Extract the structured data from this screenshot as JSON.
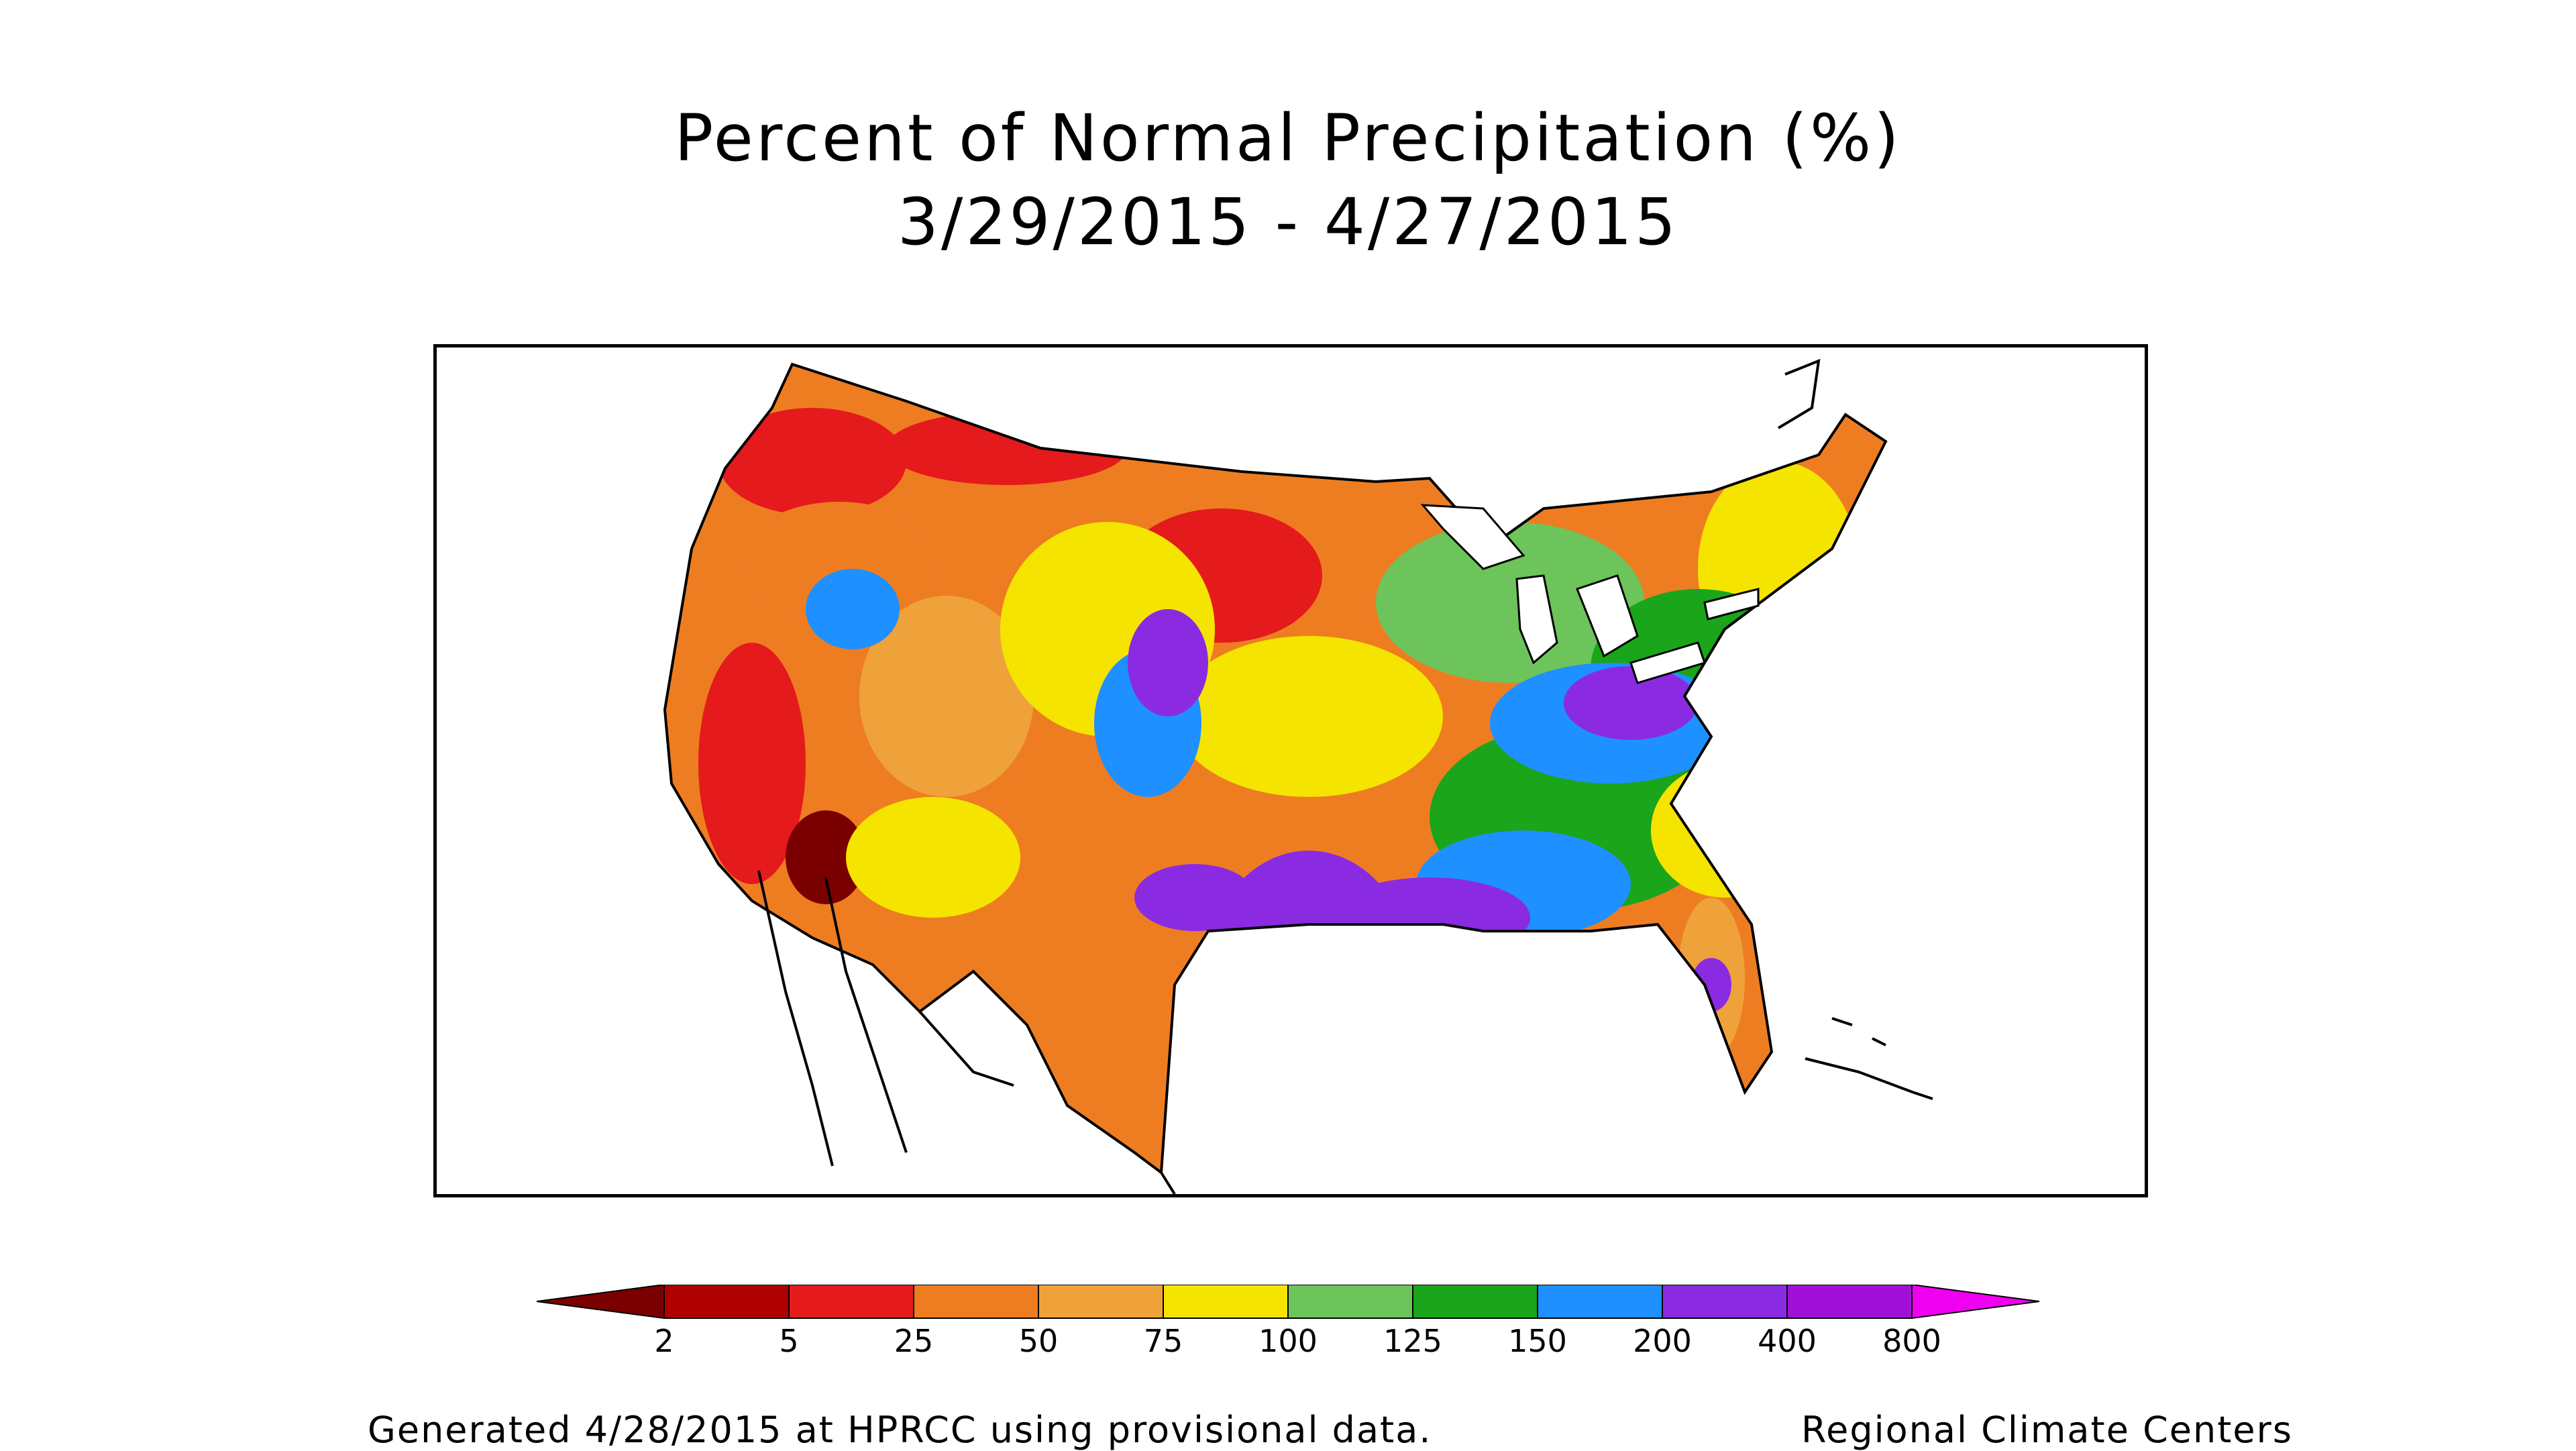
{
  "title": "Percent of Normal Precipitation (%)",
  "subtitle": "3/29/2015 - 4/27/2015",
  "legend": {
    "bins": [
      {
        "color": "#7a0000"
      },
      {
        "color": "#b00000"
      },
      {
        "color": "#e41a1c"
      },
      {
        "color": "#ee7d22"
      },
      {
        "color": "#f0a23a"
      },
      {
        "color": "#f5e400"
      },
      {
        "color": "#6cc45a"
      },
      {
        "color": "#1aa51a"
      },
      {
        "color": "#1e90ff"
      },
      {
        "color": "#8a2be2"
      },
      {
        "color": "#a010d8"
      },
      {
        "color": "#f000f0"
      }
    ],
    "tick_labels": [
      "2",
      "5",
      "25",
      "50",
      "75",
      "100",
      "125",
      "150",
      "200",
      "400",
      "800"
    ]
  },
  "footer": {
    "left": "Generated 4/28/2015 at HPRCC using provisional data.",
    "right": "Regional Climate Centers"
  },
  "colors": {
    "background": "#ffffff",
    "outline": "#000000"
  }
}
